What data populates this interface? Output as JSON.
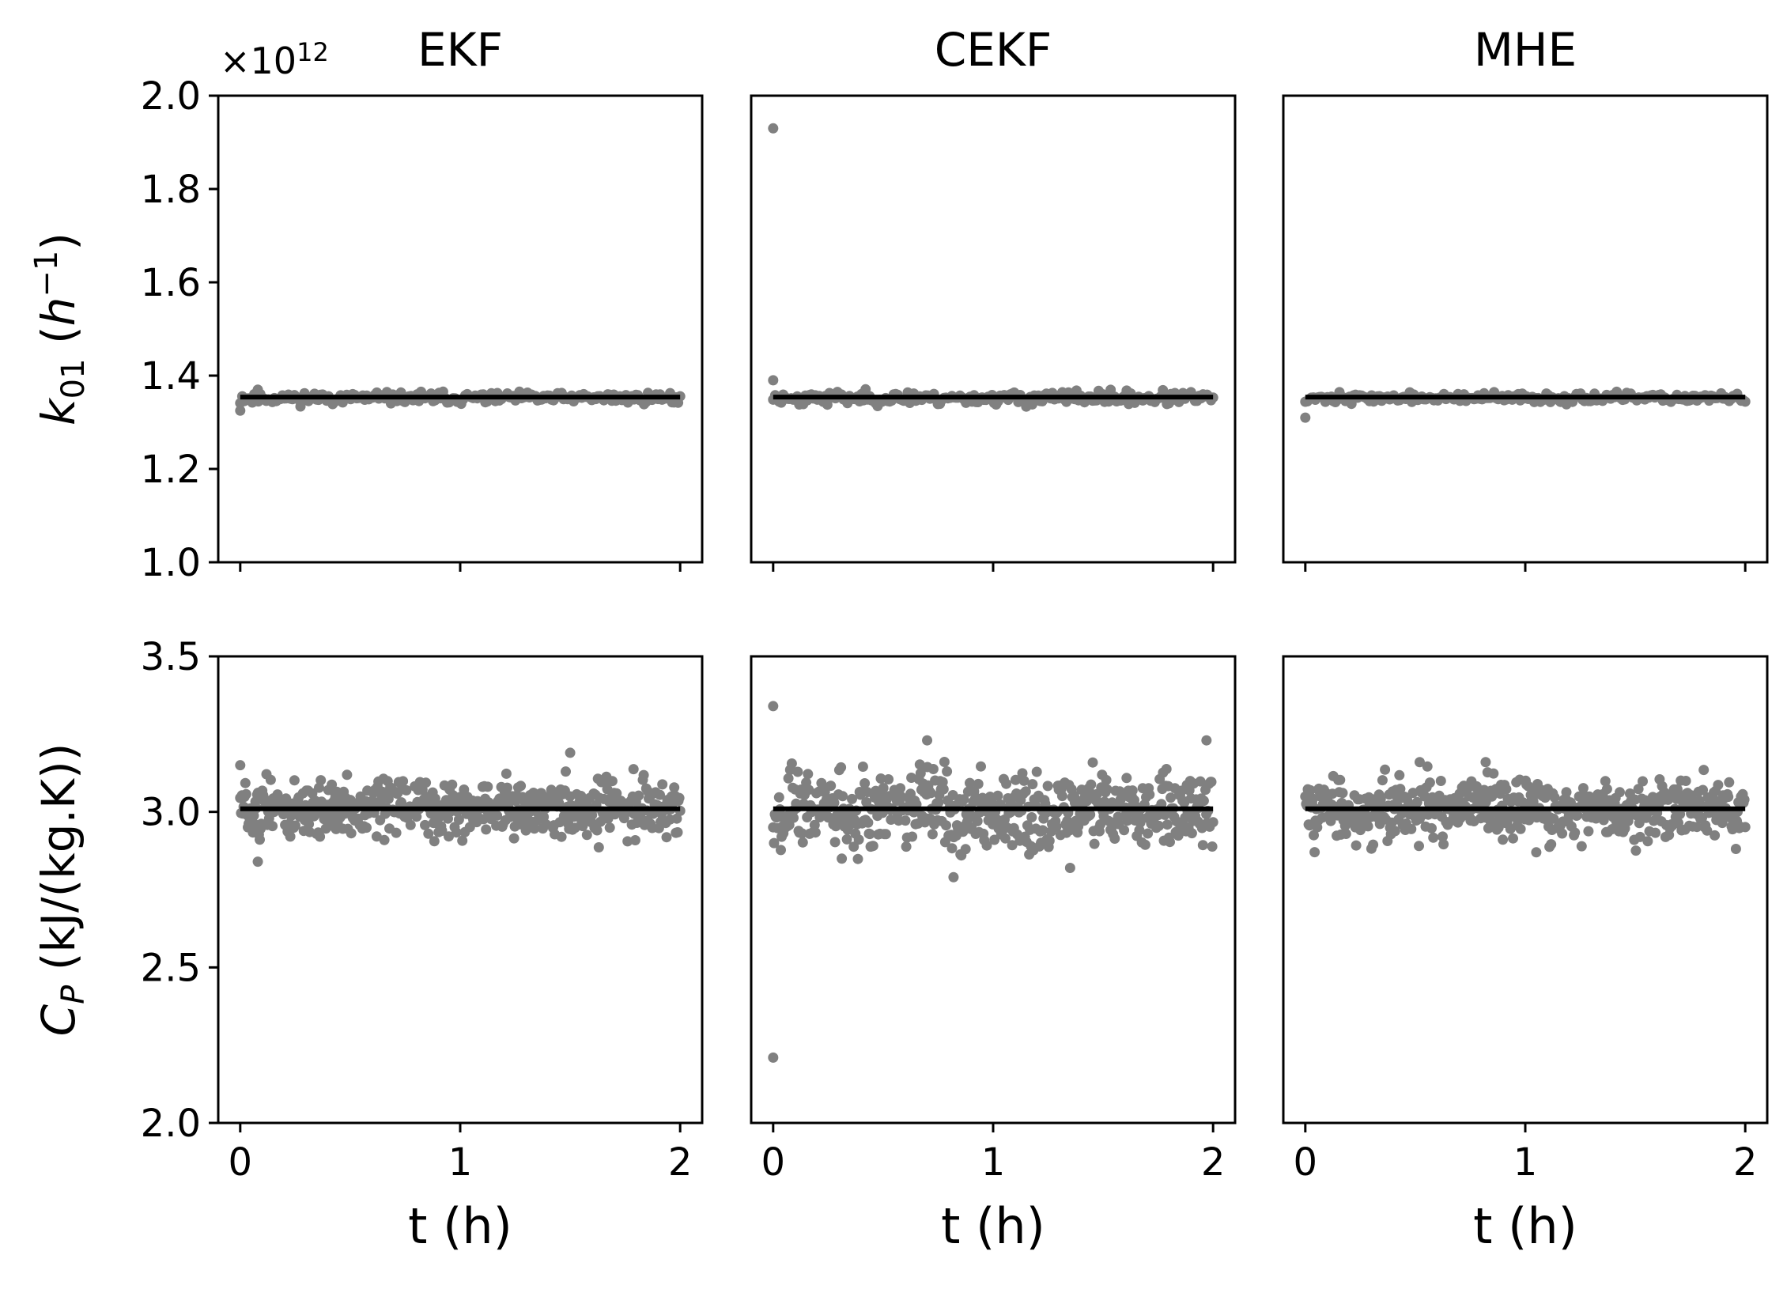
{
  "chart_data": [
    {
      "type": "scatter",
      "title": "EKF",
      "ylabel": "k01 (h^-1)",
      "ylabel_main": "k",
      "ylabel_sub": "01",
      "ylabel_unit_open": " (",
      "ylabel_unit_base": "h",
      "ylabel_unit_sup": "−1",
      "ylabel_unit_close": ")",
      "y_multiplier": "×10",
      "y_multiplier_exp": "12",
      "xlabel": "",
      "xlim": [
        -0.1,
        2.1
      ],
      "ylim": [
        1.0,
        2.0
      ],
      "xticks": [
        0,
        1,
        2
      ],
      "yticks": [
        1.0,
        1.2,
        1.4,
        1.6,
        1.8,
        2.0
      ],
      "ytick_labels": [
        "1.0",
        "1.2",
        "1.4",
        "1.6",
        "1.8",
        "2.0"
      ],
      "reference_line": 1.354,
      "noise": {
        "center": 1.352,
        "spread": 0.006,
        "count": 220,
        "seed": 11
      },
      "outliers": [
        {
          "x": 0.0,
          "y": 1.325
        },
        {
          "x": 0.08,
          "y": 1.37
        }
      ],
      "series": [
        {
          "color": "#808080",
          "marker": "dot"
        },
        {
          "color": "#000000",
          "style": "line"
        }
      ],
      "grid": false
    },
    {
      "type": "scatter",
      "title": "CEKF",
      "xlabel": "",
      "xlim": [
        -0.1,
        2.1
      ],
      "ylim": [
        1.0,
        2.0
      ],
      "xticks": [
        0,
        1,
        2
      ],
      "reference_line": 1.354,
      "noise": {
        "center": 1.352,
        "spread": 0.007,
        "count": 220,
        "seed": 23
      },
      "outliers": [
        {
          "x": 0.0,
          "y": 1.93
        },
        {
          "x": 0.0,
          "y": 1.39
        }
      ],
      "grid": false
    },
    {
      "type": "scatter",
      "title": "MHE",
      "xlabel": "",
      "xlim": [
        -0.1,
        2.1
      ],
      "ylim": [
        1.0,
        2.0
      ],
      "xticks": [
        0,
        1,
        2
      ],
      "reference_line": 1.354,
      "noise": {
        "center": 1.352,
        "spread": 0.005,
        "count": 220,
        "seed": 37
      },
      "outliers": [
        {
          "x": 0.0,
          "y": 1.31
        }
      ],
      "grid": false
    },
    {
      "type": "scatter",
      "title": "",
      "ylabel": "CP (kJ/(kg.K))",
      "ylabel_main": "C",
      "ylabel_sub": "P",
      "ylabel_unit_open": " (kJ/(kg.K))",
      "ylabel_unit_base": "",
      "ylabel_unit_sup": "",
      "ylabel_unit_close": "",
      "xlabel": "t (h)",
      "xlim": [
        -0.1,
        2.1
      ],
      "ylim": [
        2.0,
        3.5
      ],
      "xticks": [
        0,
        1,
        2
      ],
      "xtick_labels": [
        "0",
        "1",
        "2"
      ],
      "yticks": [
        2.0,
        2.5,
        3.0,
        3.5
      ],
      "ytick_labels": [
        "2.0",
        "2.5",
        "3.0",
        "3.5"
      ],
      "reference_line": 3.01,
      "noise": {
        "center": 3.01,
        "spread": 0.045,
        "count": 520,
        "seed": 51
      },
      "outliers": [
        {
          "x": 0.0,
          "y": 3.15
        },
        {
          "x": 0.08,
          "y": 2.84
        },
        {
          "x": 1.5,
          "y": 3.19
        }
      ],
      "grid": false
    },
    {
      "type": "scatter",
      "title": "",
      "xlabel": "t (h)",
      "xlim": [
        -0.1,
        2.1
      ],
      "ylim": [
        2.0,
        3.5
      ],
      "xticks": [
        0,
        1,
        2
      ],
      "xtick_labels": [
        "0",
        "1",
        "2"
      ],
      "reference_line": 3.01,
      "noise": {
        "center": 3.01,
        "spread": 0.065,
        "count": 520,
        "seed": 67
      },
      "outliers": [
        {
          "x": 0.0,
          "y": 3.34
        },
        {
          "x": 0.0,
          "y": 2.21
        },
        {
          "x": 0.7,
          "y": 3.23
        },
        {
          "x": 0.82,
          "y": 2.79
        },
        {
          "x": 1.97,
          "y": 3.23
        },
        {
          "x": 1.35,
          "y": 2.82
        }
      ],
      "grid": false
    },
    {
      "type": "scatter",
      "title": "",
      "xlabel": "t (h)",
      "xlim": [
        -0.1,
        2.1
      ],
      "ylim": [
        2.0,
        3.5
      ],
      "xticks": [
        0,
        1,
        2
      ],
      "xtick_labels": [
        "0",
        "1",
        "2"
      ],
      "reference_line": 3.01,
      "noise": {
        "center": 3.01,
        "spread": 0.05,
        "count": 520,
        "seed": 83
      },
      "outliers": [
        {
          "x": 0.52,
          "y": 3.16
        },
        {
          "x": 0.82,
          "y": 3.16
        },
        {
          "x": 1.05,
          "y": 2.87
        }
      ],
      "grid": false
    }
  ]
}
